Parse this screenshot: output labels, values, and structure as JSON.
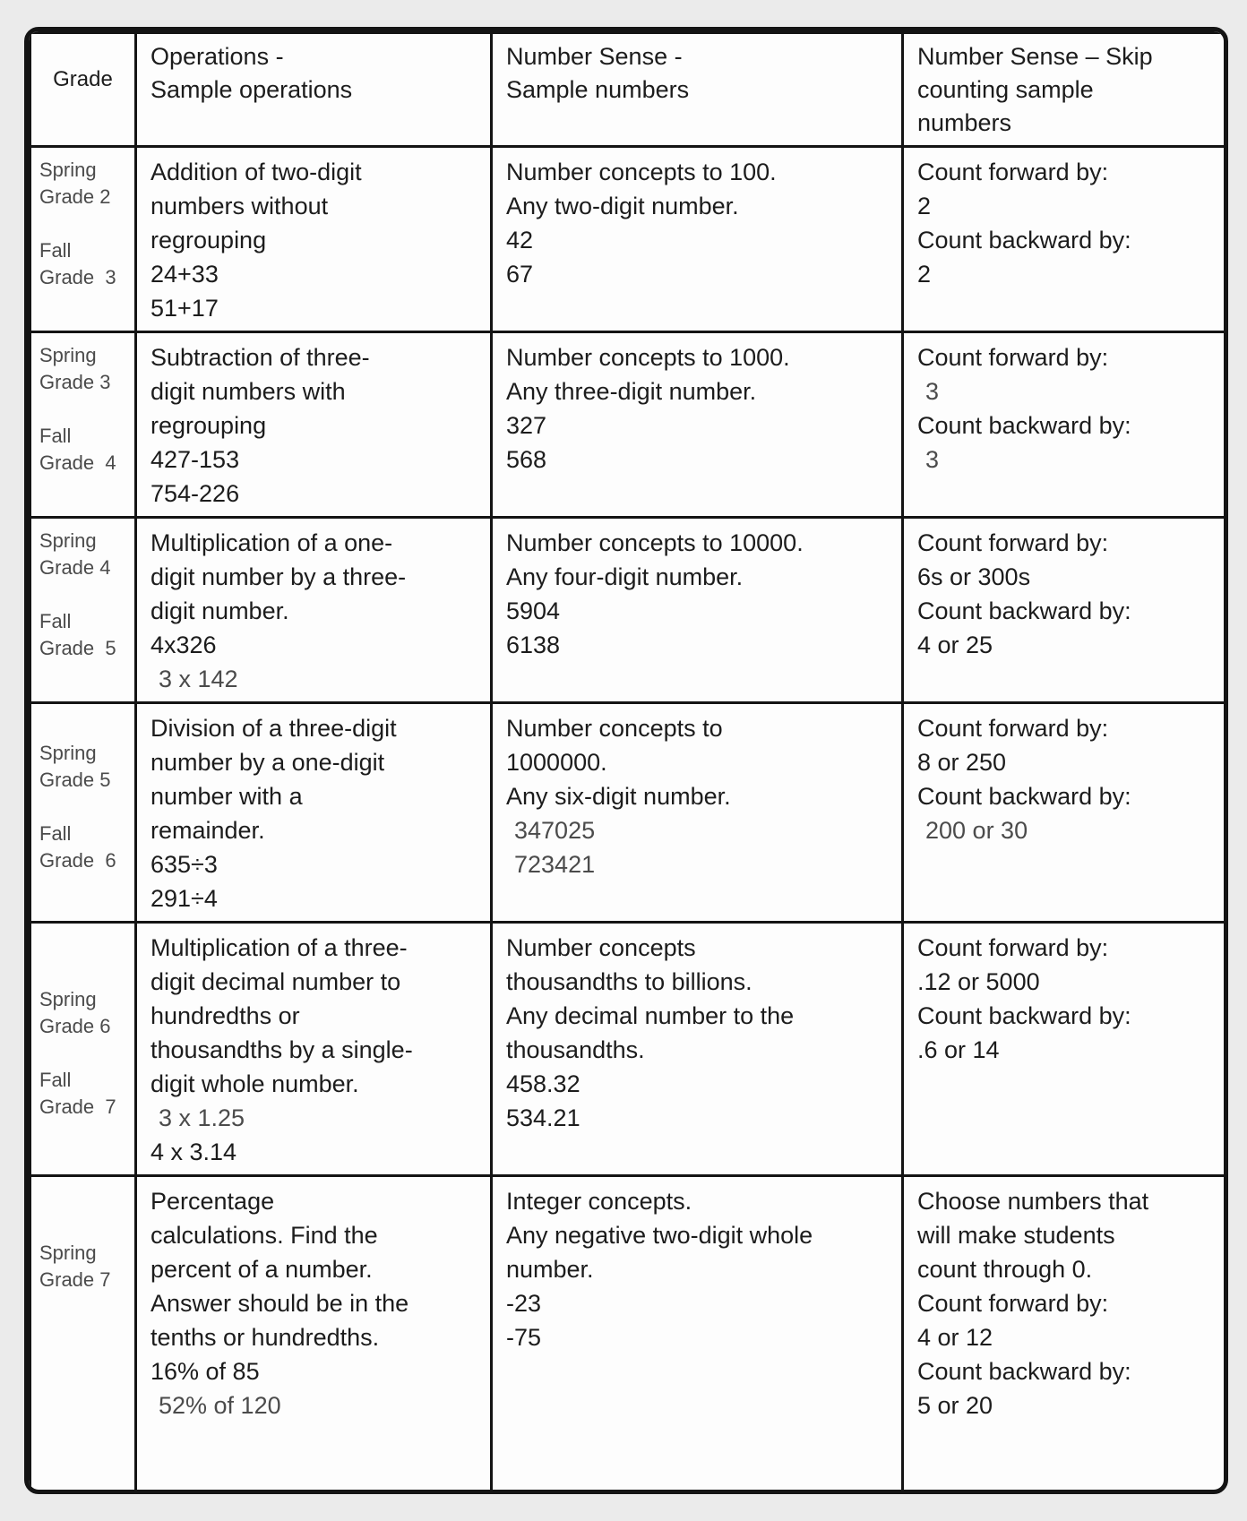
{
  "colors": {
    "page_background": "#ebebeb",
    "cell_background": "#fdfdfd",
    "border": "#141414",
    "text": "#1c1c1c",
    "muted_text": "#4b4b4b"
  },
  "table": {
    "headers": [
      {
        "label": "Grade"
      },
      {
        "label": "Operations -\nSample operations"
      },
      {
        "label": "Number Sense -\nSample numbers"
      },
      {
        "label": "Number Sense – Skip\ncounting sample\nnumbers"
      }
    ],
    "rows": [
      {
        "grade": [
          {
            "text": "Spring"
          },
          {
            "text": "Grade 2"
          },
          {
            "text": "Fall",
            "gap": 1
          },
          {
            "text": "Grade  3"
          }
        ],
        "operations": [
          {
            "text": "Addition of two-digit"
          },
          {
            "text": "numbers without"
          },
          {
            "text": "regrouping"
          },
          {
            "text": "24+33"
          },
          {
            "text": "51+17"
          }
        ],
        "number_sense": [
          {
            "text": "Number concepts to 100."
          },
          {
            "text": "Any two-digit number."
          },
          {
            "text": "42"
          },
          {
            "text": "67"
          }
        ],
        "skip_counting": [
          {
            "text": "Count forward by:"
          },
          {
            "text": "2"
          },
          {
            "text": "Count backward by:"
          },
          {
            "text": "2"
          }
        ]
      },
      {
        "grade": [
          {
            "text": "Spring"
          },
          {
            "text": "Grade 3"
          },
          {
            "text": "Fall",
            "gap": 1
          },
          {
            "text": "Grade  4"
          }
        ],
        "operations": [
          {
            "text": "Subtraction of three-"
          },
          {
            "text": "digit numbers with"
          },
          {
            "text": "regrouping"
          },
          {
            "text": "427-153"
          },
          {
            "text": "754-226"
          }
        ],
        "number_sense": [
          {
            "text": "Number concepts to 1000."
          },
          {
            "text": "Any three-digit number."
          },
          {
            "text": "327"
          },
          {
            "text": "568"
          }
        ],
        "skip_counting": [
          {
            "text": "Count forward by:"
          },
          {
            "text": "3",
            "muted": true,
            "indent": true
          },
          {
            "text": "Count backward by:"
          },
          {
            "text": "3",
            "muted": true,
            "indent": true
          }
        ]
      },
      {
        "grade": [
          {
            "text": "Spring"
          },
          {
            "text": "Grade 4"
          },
          {
            "text": "Fall",
            "gap": 1
          },
          {
            "text": "Grade  5"
          }
        ],
        "operations": [
          {
            "text": "Multiplication of a one-"
          },
          {
            "text": "digit number by a three-"
          },
          {
            "text": "digit number."
          },
          {
            "text": "4x326"
          },
          {
            "text": "3 x 142",
            "muted": true,
            "indent": true
          }
        ],
        "number_sense": [
          {
            "text": "Number concepts to 10000."
          },
          {
            "text": "Any four-digit number."
          },
          {
            "text": "5904"
          },
          {
            "text": "6138"
          }
        ],
        "skip_counting": [
          {
            "text": "Count forward by:"
          },
          {
            "text": "6s or 300s"
          },
          {
            "text": "Count backward by:"
          },
          {
            "text": "4 or 25"
          }
        ]
      },
      {
        "grade": [
          {
            "text": "Spring",
            "gap": 1
          },
          {
            "text": "Grade 5"
          },
          {
            "text": "Fall",
            "gap": 1
          },
          {
            "text": "Grade  6"
          }
        ],
        "operations": [
          {
            "text": "Division of a three-digit"
          },
          {
            "text": "number by a one-digit"
          },
          {
            "text": "number with a"
          },
          {
            "text": "remainder."
          },
          {
            "text": "635÷3"
          },
          {
            "text": "291÷4"
          }
        ],
        "number_sense": [
          {
            "text": "Number concepts to"
          },
          {
            "text": "1000000."
          },
          {
            "text": "Any six-digit number."
          },
          {
            "text": "347025",
            "muted": true,
            "indent": true
          },
          {
            "text": "723421",
            "muted": true,
            "indent": true
          }
        ],
        "skip_counting": [
          {
            "text": "Count forward by:"
          },
          {
            "text": "8 or 250"
          },
          {
            "text": "Count backward by:"
          },
          {
            "text": "200 or 30",
            "muted": true,
            "indent": true
          }
        ]
      },
      {
        "grade": [
          {
            "text": "Spring",
            "gap": 2
          },
          {
            "text": "Grade 6"
          },
          {
            "text": "Fall",
            "gap": 1
          },
          {
            "text": "Grade  7"
          }
        ],
        "operations": [
          {
            "text": "Multiplication of a three-"
          },
          {
            "text": "digit decimal number to"
          },
          {
            "text": "hundredths or"
          },
          {
            "text": "thousandths by a single-"
          },
          {
            "text": "digit whole number."
          },
          {
            "text": "3 x 1.25",
            "muted": true,
            "indent": true
          },
          {
            "text": "4 x 3.14"
          }
        ],
        "number_sense": [
          {
            "text": "Number concepts"
          },
          {
            "text": "thousandths to billions."
          },
          {
            "text": "Any decimal number to the"
          },
          {
            "text": "thousandths."
          },
          {
            "text": "458.32"
          },
          {
            "text": "534.21"
          }
        ],
        "skip_counting": [
          {
            "text": "Count forward by:"
          },
          {
            "text": ".12 or 5000"
          },
          {
            "text": "Count backward by:"
          },
          {
            "text": ".6 or 14"
          }
        ]
      },
      {
        "grade": [
          {
            "text": "Spring",
            "gap": 2
          },
          {
            "text": "Grade 7"
          }
        ],
        "operations": [
          {
            "text": "Percentage"
          },
          {
            "text": "calculations. Find the"
          },
          {
            "text": "percent of a number."
          },
          {
            "text": "Answer should be in the"
          },
          {
            "text": "tenths or hundredths."
          },
          {
            "text": "16% of 85"
          },
          {
            "text": "52% of 120",
            "muted": true,
            "indent": true
          }
        ],
        "number_sense": [
          {
            "text": "Integer concepts."
          },
          {
            "text": "Any negative two-digit whole"
          },
          {
            "text": "number."
          },
          {
            "text": "-23"
          },
          {
            "text": "-75"
          }
        ],
        "skip_counting": [
          {
            "text": "Choose numbers that"
          },
          {
            "text": "will make students"
          },
          {
            "text": "count through 0."
          },
          {
            "text": "Count forward by:"
          },
          {
            "text": "4 or 12"
          },
          {
            "text": "Count backward by:"
          },
          {
            "text": "5 or 20"
          }
        ]
      }
    ]
  }
}
